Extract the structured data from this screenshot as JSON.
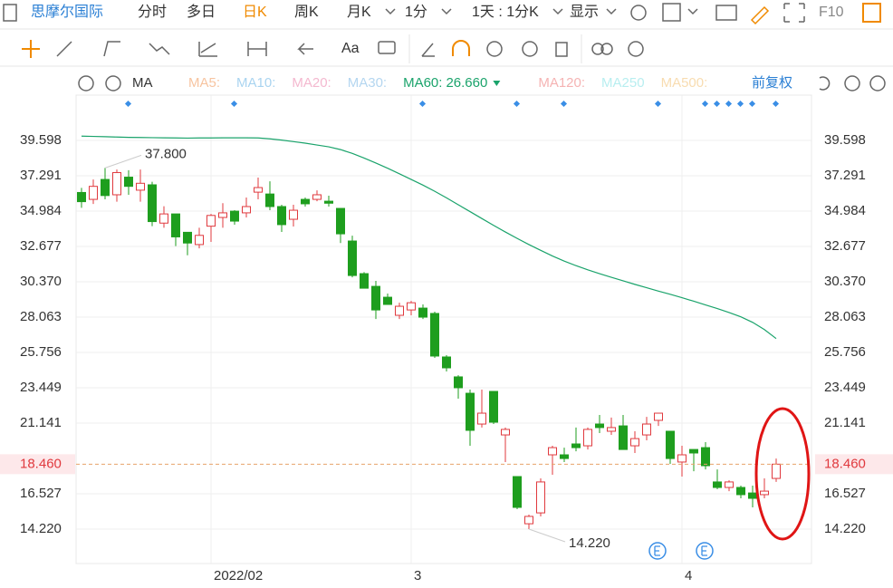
{
  "toolbar": {
    "stock": "思摩尔国际",
    "tabs": [
      "分时",
      "多日",
      "日K",
      "周K",
      "月K"
    ],
    "period": "1分",
    "range": "1天 : 1分K",
    "display": "显示",
    "f10": "F10"
  },
  "tools": {
    "text_tool": "Aa"
  },
  "legend": {
    "indicator": "MA",
    "items": [
      {
        "name": "MA5:",
        "color": "#f7c4a0"
      },
      {
        "name": "MA10:",
        "color": "#a9d4f0"
      },
      {
        "name": "MA20:",
        "color": "#f4b8cf"
      },
      {
        "name": "MA30:",
        "color": "#b4d6f0"
      }
    ],
    "items_after": [
      {
        "name": "MA120:",
        "color": "#f5b3b3"
      },
      {
        "name": "MA250",
        "color": "#b8eef0"
      },
      {
        "name": "MA500:",
        "color": "#f8dcb0"
      }
    ],
    "adjust": "前复权"
  },
  "chart_data": {
    "type": "candlestick",
    "categories": [
      null,
      null,
      null,
      null,
      null,
      null,
      null,
      null,
      null,
      null,
      null,
      "2022/02",
      null,
      null,
      null,
      null,
      null,
      null,
      null,
      null,
      null,
      null,
      null,
      null,
      null,
      null,
      null,
      null,
      "3",
      null,
      null,
      null,
      null,
      null,
      null,
      null,
      null,
      null,
      null,
      null,
      null,
      null,
      null,
      null,
      null,
      null,
      null,
      null,
      null,
      null,
      null,
      "4",
      null,
      null,
      null,
      null,
      null,
      null,
      null,
      null
    ],
    "open": [
      36.2,
      35.75,
      37.05,
      36.05,
      37.2,
      36.35,
      36.7,
      34.2,
      34.8,
      33.6,
      32.8,
      34.0,
      34.57,
      34.98,
      34.87,
      36.22,
      36.1,
      35.28,
      34.45,
      35.75,
      35.75,
      35.63,
      35.16,
      33.03,
      30.9,
      30.07,
      29.36,
      28.18,
      28.53,
      28.65,
      28.3,
      25.46,
      24.16,
      23.09,
      21.08,
      23.21,
      20.37,
      17.65,
      14.57,
      15.28,
      19.07,
      19.07,
      19.78,
      19.66,
      21.08,
      20.61,
      20.96,
      19.66,
      20.37,
      21.32,
      20.61,
      18.6,
      19.42,
      19.54,
      17.3,
      16.94,
      16.94,
      16.58,
      16.47,
      17.53
    ],
    "close": [
      35.6,
      36.6,
      36.0,
      37.5,
      36.6,
      36.8,
      34.3,
      34.8,
      33.3,
      32.9,
      33.4,
      34.7,
      34.87,
      34.33,
      35.28,
      36.52,
      35.28,
      34.1,
      35.04,
      35.46,
      36.05,
      35.5,
      33.5,
      30.78,
      29.95,
      28.53,
      28.89,
      28.77,
      29.0,
      28.06,
      25.52,
      24.75,
      23.45,
      20.67,
      21.79,
      21.2,
      20.73,
      15.64,
      15.05,
      17.3,
      19.54,
      18.83,
      19.54,
      20.73,
      20.85,
      20.85,
      19.42,
      20.13,
      21.08,
      21.79,
      18.83,
      19.07,
      19.19,
      18.36,
      16.94,
      17.3,
      16.47,
      16.23,
      16.7,
      18.46
    ],
    "high": [
      36.5,
      37.05,
      37.8,
      37.7,
      37.65,
      37.7,
      36.9,
      35.3,
      34.8,
      33.6,
      33.9,
      34.8,
      35.5,
      35.04,
      35.87,
      37.17,
      36.93,
      35.4,
      35.4,
      35.87,
      36.34,
      35.99,
      35.16,
      33.38,
      31.0,
      30.43,
      29.6,
      29.0,
      29.12,
      28.89,
      28.42,
      25.58,
      24.27,
      23.33,
      23.33,
      23.21,
      20.85,
      17.65,
      15.17,
      17.53,
      19.66,
      19.54,
      20.85,
      20.85,
      21.67,
      21.5,
      21.67,
      20.61,
      21.55,
      21.79,
      20.61,
      19.66,
      19.42,
      19.9,
      18.12,
      17.41,
      17.06,
      17.06,
      17.53,
      18.83
    ],
    "low": [
      35.2,
      35.45,
      35.75,
      35.6,
      36.05,
      35.6,
      34.0,
      33.9,
      32.7,
      32.1,
      32.55,
      32.97,
      33.9,
      34.1,
      34.57,
      35.75,
      35.04,
      33.62,
      33.98,
      35.28,
      35.63,
      35.28,
      32.9,
      30.66,
      29.95,
      27.94,
      28.89,
      27.94,
      28.18,
      27.94,
      25.4,
      24.51,
      22.74,
      19.66,
      20.85,
      21.08,
      18.6,
      15.52,
      14.22,
      15.05,
      17.77,
      18.6,
      19.3,
      19.42,
      20.49,
      20.37,
      19.42,
      19.19,
      20.02,
      20.96,
      18.48,
      17.65,
      18.0,
      18.12,
      16.82,
      16.7,
      16.23,
      15.64,
      16.23,
      17.3
    ],
    "up_color": "#e0393e",
    "down_color": "#1e9e1e",
    "series": [
      {
        "name": "MA60:",
        "color": "#1aa36b",
        "current_value": {
          "value": 26.66,
          "label": "26.660"
        },
        "values": [
          39.88,
          39.86,
          39.84,
          39.82,
          39.8,
          39.79,
          39.78,
          39.77,
          39.76,
          39.75,
          39.76,
          39.76,
          39.77,
          39.77,
          39.77,
          39.76,
          39.7,
          39.62,
          39.52,
          39.42,
          39.3,
          39.18,
          39.0,
          38.75,
          38.45,
          38.12,
          37.78,
          37.42,
          37.05,
          36.68,
          36.28,
          35.85,
          35.4,
          34.95,
          34.5,
          34.05,
          33.62,
          33.2,
          32.8,
          32.42,
          32.05,
          31.72,
          31.42,
          31.15,
          30.9,
          30.66,
          30.43,
          30.2,
          29.98,
          29.76,
          29.55,
          29.33,
          29.1,
          28.86,
          28.62,
          28.36,
          28.08,
          27.72,
          27.25,
          26.66
        ]
      }
    ],
    "ylim": [
      11.972,
      42.556
    ],
    "yticks": [
      {
        "value": 39.598,
        "label": "39.598"
      },
      {
        "value": 37.291,
        "label": "37.291"
      },
      {
        "value": 34.984,
        "label": "34.984"
      },
      {
        "value": 32.677,
        "label": "32.677"
      },
      {
        "value": 30.37,
        "label": "30.370"
      },
      {
        "value": 28.063,
        "label": "28.063"
      },
      {
        "value": 25.756,
        "label": "25.756"
      },
      {
        "value": 23.449,
        "label": "23.449"
      },
      {
        "value": 21.141,
        "label": "21.141"
      },
      {
        "value": 16.527,
        "label": "16.527"
      },
      {
        "value": 14.22,
        "label": "14.220"
      }
    ],
    "last_price": {
      "value": 18.46,
      "label": "18.460"
    },
    "max_label": {
      "value": 37.8,
      "label": "37.800"
    },
    "min_label": {
      "value": 14.22,
      "label": "14.220"
    },
    "grid": true
  }
}
